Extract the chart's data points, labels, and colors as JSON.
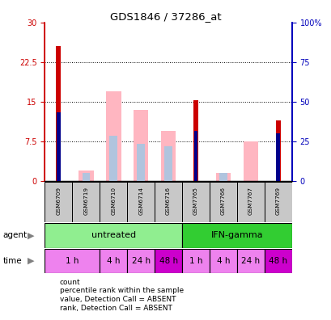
{
  "title": "GDS1846 / 37286_at",
  "samples": [
    "GSM6709",
    "GSM6719",
    "GSM6710",
    "GSM6714",
    "GSM6716",
    "GSM7765",
    "GSM7766",
    "GSM7767",
    "GSM7769"
  ],
  "red_bars": [
    25.5,
    0,
    0,
    0,
    0,
    15.2,
    0,
    0,
    11.5
  ],
  "pink_bars": [
    0,
    2.0,
    17.0,
    13.5,
    9.5,
    0,
    1.5,
    7.5,
    0
  ],
  "blue_bars": [
    13.0,
    0,
    0,
    0,
    0,
    9.5,
    0,
    0,
    9.0
  ],
  "light_blue_bars": [
    0,
    1.5,
    8.5,
    7.0,
    6.5,
    0,
    1.5,
    0,
    0
  ],
  "ylim_left": [
    0,
    30
  ],
  "ylim_right": [
    0,
    100
  ],
  "yticks_left": [
    0,
    7.5,
    15,
    22.5,
    30
  ],
  "yticks_right": [
    0,
    25,
    50,
    75,
    100
  ],
  "ytick_labels_left": [
    "0",
    "7.5",
    "15",
    "22.5",
    "30"
  ],
  "ytick_labels_right": [
    "0",
    "25",
    "50",
    "75",
    "100%"
  ],
  "left_axis_color": "#CC0000",
  "right_axis_color": "#0000BB",
  "pink_color": "#FFB6C1",
  "light_blue_color": "#B0C4DE",
  "red_color": "#CC0000",
  "blue_color": "#00008B",
  "pink_bar_width": 0.55,
  "light_blue_bar_width": 0.28,
  "red_bar_width": 0.18,
  "blue_bar_width": 0.14,
  "time_boxes": [
    [
      0,
      1,
      "1 h",
      "#EE82EE"
    ],
    [
      2,
      2,
      "4 h",
      "#EE82EE"
    ],
    [
      3,
      3,
      "24 h",
      "#EE82EE"
    ],
    [
      4,
      4,
      "48 h",
      "#CC00CC"
    ],
    [
      5,
      5,
      "1 h",
      "#EE82EE"
    ],
    [
      6,
      6,
      "4 h",
      "#EE82EE"
    ],
    [
      7,
      7,
      "24 h",
      "#EE82EE"
    ],
    [
      8,
      8,
      "48 h",
      "#CC00CC"
    ]
  ],
  "agent_boxes": [
    [
      0,
      4,
      "untreated",
      "#90EE90"
    ],
    [
      5,
      8,
      "IFN-gamma",
      "#32CD32"
    ]
  ],
  "legend_colors": [
    "#CC0000",
    "#00008B",
    "#FFB6C1",
    "#B0C4DE"
  ],
  "legend_labels": [
    "count",
    "percentile rank within the sample",
    "value, Detection Call = ABSENT",
    "rank, Detection Call = ABSENT"
  ],
  "sample_cell_color": "#C8C8C8"
}
